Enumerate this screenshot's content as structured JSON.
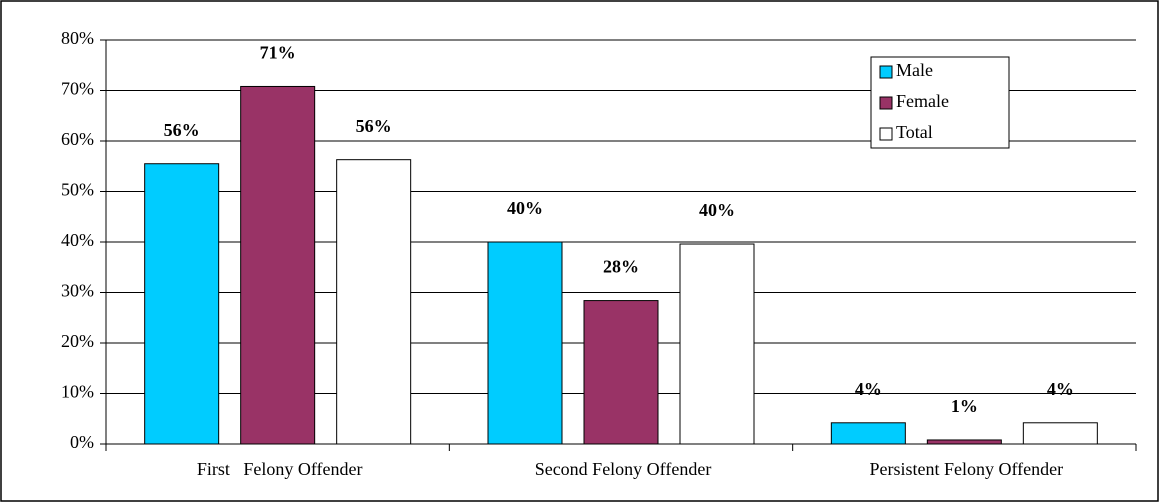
{
  "chart_data": {
    "type": "bar",
    "categories": [
      "First   Felony Offender",
      "Second Felony Offender",
      "Persistent Felony Offender"
    ],
    "series": [
      {
        "name": "Male",
        "color": "#00ccff",
        "values": [
          55.5,
          40,
          4.2
        ],
        "value_labels": [
          "56%",
          "40%",
          "4%"
        ]
      },
      {
        "name": "Female",
        "color": "#993366",
        "values": [
          70.8,
          28.4,
          0.8
        ],
        "value_labels": [
          "71%",
          "28%",
          "1%"
        ]
      },
      {
        "name": "Total",
        "color": "#ffffff",
        "values": [
          56.3,
          39.6,
          4.2
        ],
        "value_labels": [
          "56%",
          "40%",
          "4%"
        ]
      }
    ],
    "ylim": [
      0,
      80
    ],
    "yticks": [
      {
        "value": 0,
        "label": "0%"
      },
      {
        "value": 10,
        "label": "10%"
      },
      {
        "value": 20,
        "label": "20%"
      },
      {
        "value": 30,
        "label": "30%"
      },
      {
        "value": 40,
        "label": "40%"
      },
      {
        "value": 50,
        "label": "50%"
      },
      {
        "value": 60,
        "label": "60%"
      },
      {
        "value": 70,
        "label": "70%"
      },
      {
        "value": 80,
        "label": "80%"
      }
    ],
    "grid": true,
    "legend": "upper right"
  }
}
